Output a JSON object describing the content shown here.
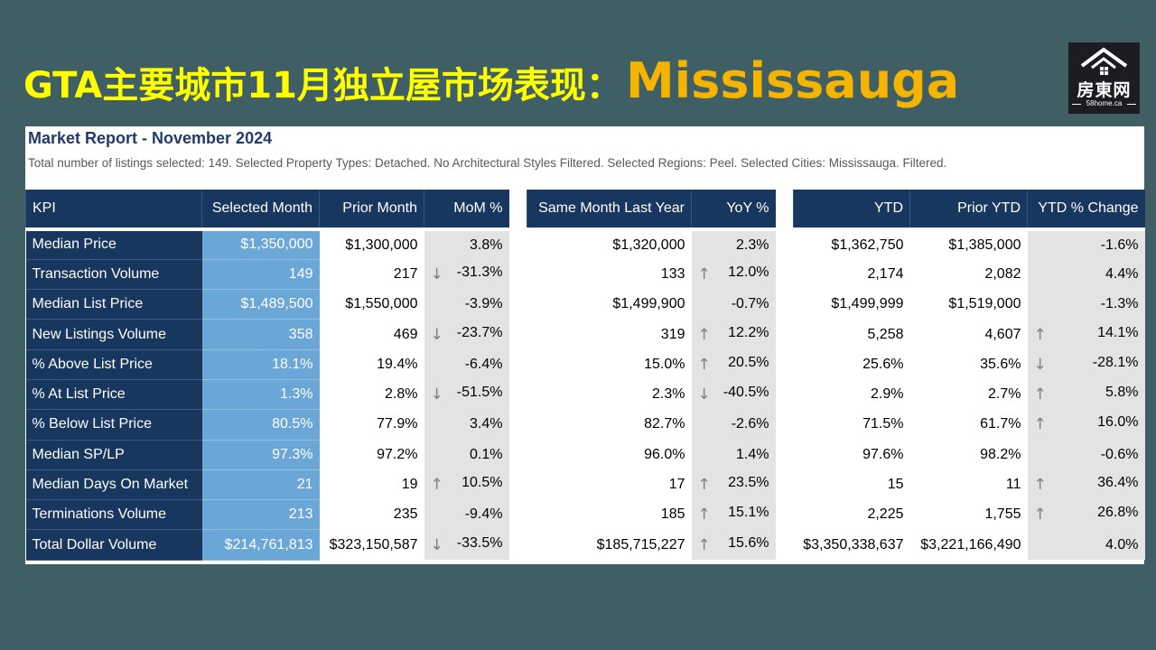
{
  "header": {
    "title_cn": "GTA主要城市11月独立屋市场表现：",
    "title_city": "Mississauga"
  },
  "logo": {
    "text": "房東网",
    "site": "58home.ca",
    "icon": "house-roof-icon"
  },
  "report": {
    "title": "Market Report - November 2024",
    "description": "Total number of listings selected: 149. Selected Property Types: Detached. No Architectural Styles Filtered. Selected Regions: Peel. Selected Cities: Mississauga. Filtered.",
    "columns": [
      "KPI",
      "Selected Month",
      "Prior Month",
      "MoM %",
      "Same Month Last Year",
      "YoY %",
      "YTD",
      "Prior YTD",
      "YTD % Change"
    ],
    "rows": [
      {
        "kpi": "Median Price",
        "sel": "$1,350,000",
        "prior": "$1,300,000",
        "mom": "3.8%",
        "mom_dir": "",
        "ly": "$1,320,000",
        "yoy": "2.3%",
        "yoy_dir": "",
        "ytd": "$1,362,750",
        "pytd": "$1,385,000",
        "ytdc": "-1.6%",
        "ytdc_dir": ""
      },
      {
        "kpi": "Transaction Volume",
        "sel": "149",
        "prior": "217",
        "mom": "-31.3%",
        "mom_dir": "down",
        "ly": "133",
        "yoy": "12.0%",
        "yoy_dir": "up",
        "ytd": "2,174",
        "pytd": "2,082",
        "ytdc": "4.4%",
        "ytdc_dir": ""
      },
      {
        "kpi": "Median List Price",
        "sel": "$1,489,500",
        "prior": "$1,550,000",
        "mom": "-3.9%",
        "mom_dir": "",
        "ly": "$1,499,900",
        "yoy": "-0.7%",
        "yoy_dir": "",
        "ytd": "$1,499,999",
        "pytd": "$1,519,000",
        "ytdc": "-1.3%",
        "ytdc_dir": ""
      },
      {
        "kpi": "New Listings Volume",
        "sel": "358",
        "prior": "469",
        "mom": "-23.7%",
        "mom_dir": "down",
        "ly": "319",
        "yoy": "12.2%",
        "yoy_dir": "up",
        "ytd": "5,258",
        "pytd": "4,607",
        "ytdc": "14.1%",
        "ytdc_dir": "up"
      },
      {
        "kpi": "% Above List Price",
        "sel": "18.1%",
        "prior": "19.4%",
        "mom": "-6.4%",
        "mom_dir": "",
        "ly": "15.0%",
        "yoy": "20.5%",
        "yoy_dir": "up",
        "ytd": "25.6%",
        "pytd": "35.6%",
        "ytdc": "-28.1%",
        "ytdc_dir": "down"
      },
      {
        "kpi": "% At List Price",
        "sel": "1.3%",
        "prior": "2.8%",
        "mom": "-51.5%",
        "mom_dir": "down",
        "ly": "2.3%",
        "yoy": "-40.5%",
        "yoy_dir": "down",
        "ytd": "2.9%",
        "pytd": "2.7%",
        "ytdc": "5.8%",
        "ytdc_dir": "up"
      },
      {
        "kpi": "% Below List Price",
        "sel": "80.5%",
        "prior": "77.9%",
        "mom": "3.4%",
        "mom_dir": "",
        "ly": "82.7%",
        "yoy": "-2.6%",
        "yoy_dir": "",
        "ytd": "71.5%",
        "pytd": "61.7%",
        "ytdc": "16.0%",
        "ytdc_dir": "up"
      },
      {
        "kpi": "Median SP/LP",
        "sel": "97.3%",
        "prior": "97.2%",
        "mom": "0.1%",
        "mom_dir": "",
        "ly": "96.0%",
        "yoy": "1.4%",
        "yoy_dir": "",
        "ytd": "97.6%",
        "pytd": "98.2%",
        "ytdc": "-0.6%",
        "ytdc_dir": ""
      },
      {
        "kpi": "Median Days On Market",
        "sel": "21",
        "prior": "19",
        "mom": "10.5%",
        "mom_dir": "up",
        "ly": "17",
        "yoy": "23.5%",
        "yoy_dir": "up",
        "ytd": "15",
        "pytd": "11",
        "ytdc": "36.4%",
        "ytdc_dir": "up"
      },
      {
        "kpi": "Terminations Volume",
        "sel": "213",
        "prior": "235",
        "mom": "-9.4%",
        "mom_dir": "",
        "ly": "185",
        "yoy": "15.1%",
        "yoy_dir": "up",
        "ytd": "2,225",
        "pytd": "1,755",
        "ytdc": "26.8%",
        "ytdc_dir": "up"
      },
      {
        "kpi": "Total Dollar Volume",
        "sel": "$214,761,813",
        "prior": "$323,150,587",
        "mom": "-33.5%",
        "mom_dir": "down",
        "ly": "$185,715,227",
        "yoy": "15.6%",
        "yoy_dir": "up",
        "ytd": "$3,350,338,637",
        "pytd": "$3,221,166,490",
        "ytdc": "4.0%",
        "ytdc_dir": ""
      }
    ]
  }
}
